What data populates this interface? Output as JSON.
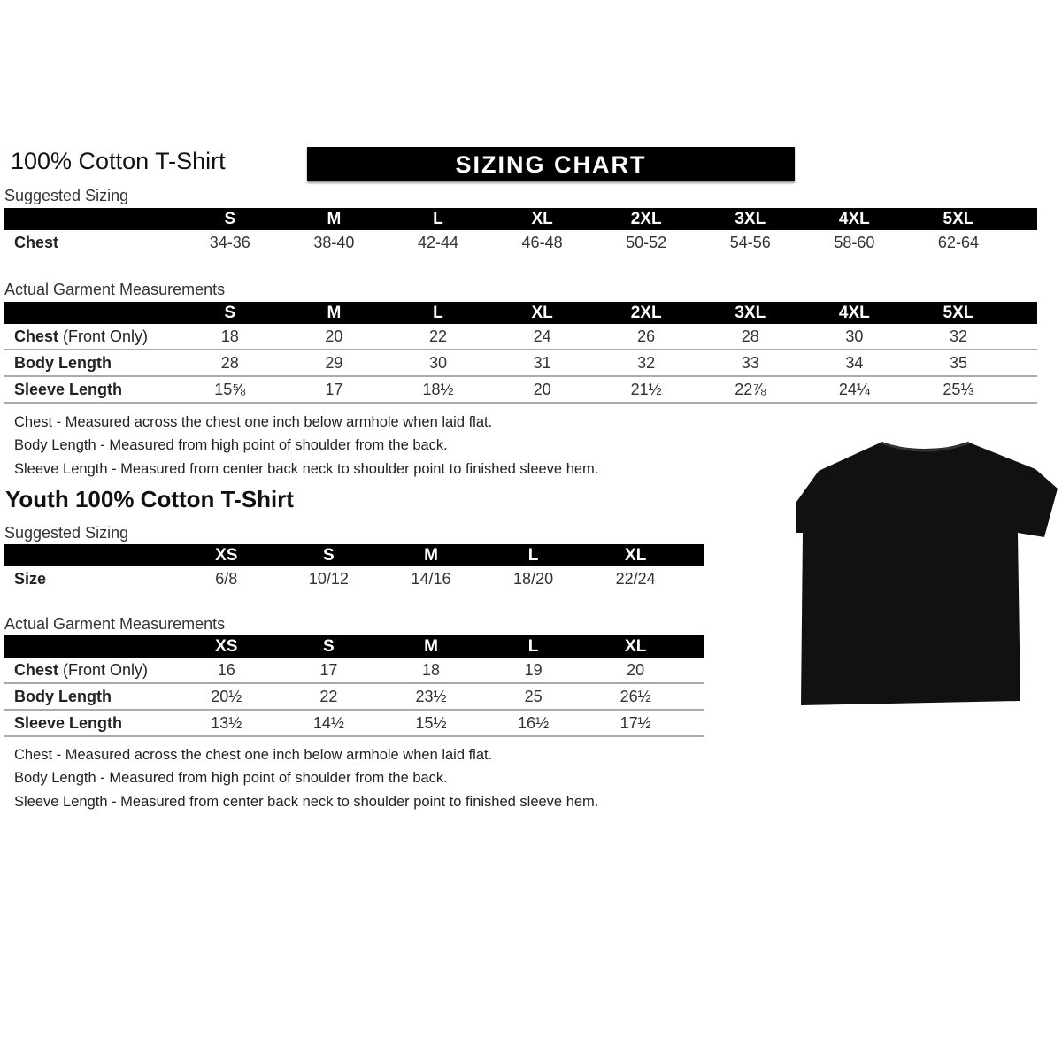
{
  "adult": {
    "title": "100% Cotton T-Shirt",
    "banner": "SIZING CHART",
    "suggested": {
      "label": "Suggested Sizing",
      "sizes": [
        "S",
        "M",
        "L",
        "XL",
        "2XL",
        "3XL",
        "4XL",
        "5XL"
      ],
      "rows": [
        {
          "label": "Chest",
          "values": [
            "34-36",
            "38-40",
            "42-44",
            "46-48",
            "50-52",
            "54-56",
            "58-60",
            "62-64"
          ]
        }
      ]
    },
    "actual": {
      "label": "Actual Garment Measurements",
      "sizes": [
        "S",
        "M",
        "L",
        "XL",
        "2XL",
        "3XL",
        "4XL",
        "5XL"
      ],
      "rows": [
        {
          "label": "Chest",
          "label_extra": " (Front Only)",
          "values": [
            "18",
            "20",
            "22",
            "24",
            "26",
            "28",
            "30",
            "32"
          ]
        },
        {
          "label": "Body Length",
          "label_extra": "",
          "values": [
            "28",
            "29",
            "30",
            "31",
            "32",
            "33",
            "34",
            "35"
          ]
        },
        {
          "label": "Sleeve Length",
          "label_extra": "",
          "values": [
            "15⅝",
            "17",
            "18½",
            "20",
            "21½",
            "22⅞",
            "24¼",
            "25⅓"
          ]
        }
      ]
    },
    "notes": [
      "Chest - Measured across the chest one inch below armhole when laid flat.",
      "Body Length - Measured from high point of shoulder from the back.",
      "Sleeve Length - Measured from center back neck to shoulder point to finished sleeve hem."
    ]
  },
  "youth": {
    "title": "Youth 100% Cotton T-Shirt",
    "suggested": {
      "label": "Suggested Sizing",
      "sizes": [
        "XS",
        "S",
        "M",
        "L",
        "XL"
      ],
      "rows": [
        {
          "label": "Size",
          "values": [
            "6/8",
            "10/12",
            "14/16",
            "18/20",
            "22/24"
          ]
        }
      ]
    },
    "actual": {
      "label": "Actual Garment Measurements",
      "sizes": [
        "XS",
        "S",
        "M",
        "L",
        "XL"
      ],
      "rows": [
        {
          "label": "Chest",
          "label_extra": " (Front Only)",
          "values": [
            "16",
            "17",
            "18",
            "19",
            "20"
          ]
        },
        {
          "label": "Body Length",
          "label_extra": "",
          "values": [
            "20½",
            "22",
            "23½",
            "25",
            "26½"
          ]
        },
        {
          "label": "Sleeve Length",
          "label_extra": "",
          "values": [
            "13½",
            "14½",
            "15½",
            "16½",
            "17½"
          ]
        }
      ]
    },
    "notes": [
      "Chest - Measured across the chest one inch below armhole when laid flat.",
      "Body Length - Measured from high point of shoulder from the back.",
      "Sleeve Length - Measured from center back neck to shoulder point to finished sleeve hem."
    ]
  },
  "image": {
    "icon": "t-shirt-icon",
    "color": "#000000"
  }
}
